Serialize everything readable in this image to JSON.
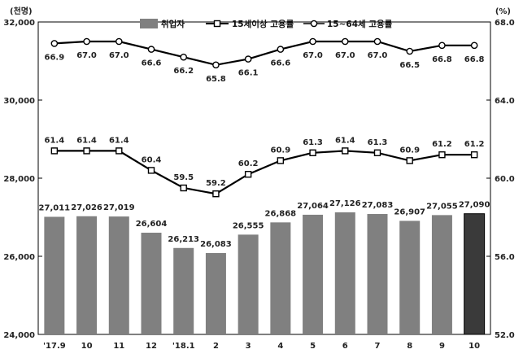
{
  "chart_data": {
    "type": "bar",
    "left_unit": "(천명)",
    "right_unit": "(%)",
    "categories": [
      "'17.9",
      "10",
      "11",
      "12",
      "'18.1",
      "2",
      "3",
      "4",
      "5",
      "6",
      "7",
      "8",
      "9",
      "10"
    ],
    "series": [
      {
        "name": "취업자",
        "type": "bar",
        "axis": "left",
        "values": [
          27011,
          27026,
          27019,
          26604,
          26213,
          26083,
          26555,
          26868,
          27064,
          27126,
          27083,
          26907,
          27055,
          27090
        ],
        "labels": [
          "27,011",
          "27,026",
          "27,019",
          "26,604",
          "26,213",
          "26,083",
          "26,555",
          "26,868",
          "27,064",
          "27,126",
          "27,083",
          "26,907",
          "27,055",
          "27,090"
        ],
        "color": "#808080",
        "highlight_color": "#3a3a3a"
      },
      {
        "name": "15세이상 고용률",
        "type": "line",
        "axis": "right",
        "marker": "square",
        "values": [
          61.4,
          61.4,
          61.4,
          60.4,
          59.5,
          59.2,
          60.2,
          60.9,
          61.3,
          61.4,
          61.3,
          60.9,
          61.2,
          61.2
        ],
        "labels": [
          "61.4",
          "61.4",
          "61.4",
          "60.4",
          "59.5",
          "59.2",
          "60.2",
          "60.9",
          "61.3",
          "61.4",
          "61.3",
          "60.9",
          "61.2",
          "61.2"
        ]
      },
      {
        "name": "15~64세 고용률",
        "type": "line",
        "axis": "right",
        "marker": "circle",
        "values": [
          66.9,
          67.0,
          67.0,
          66.6,
          66.2,
          65.8,
          66.1,
          66.6,
          67.0,
          67.0,
          67.0,
          66.5,
          66.8,
          66.8
        ],
        "labels": [
          "66.9",
          "67.0",
          "67.0",
          "66.6",
          "66.2",
          "65.8",
          "66.1",
          "66.6",
          "67.0",
          "67.0",
          "67.0",
          "66.5",
          "66.8",
          "66.8"
        ]
      }
    ],
    "y_left": {
      "min": 24000,
      "max": 32000,
      "ticks": [
        "24,000",
        "26,000",
        "28,000",
        "30,000",
        "32,000"
      ]
    },
    "y_right": {
      "min": 52,
      "max": 68,
      "ticks": [
        "52.0",
        "56.0",
        "60.0",
        "64.0",
        "68.0"
      ]
    },
    "grid": false,
    "legend_position": "top-center"
  }
}
